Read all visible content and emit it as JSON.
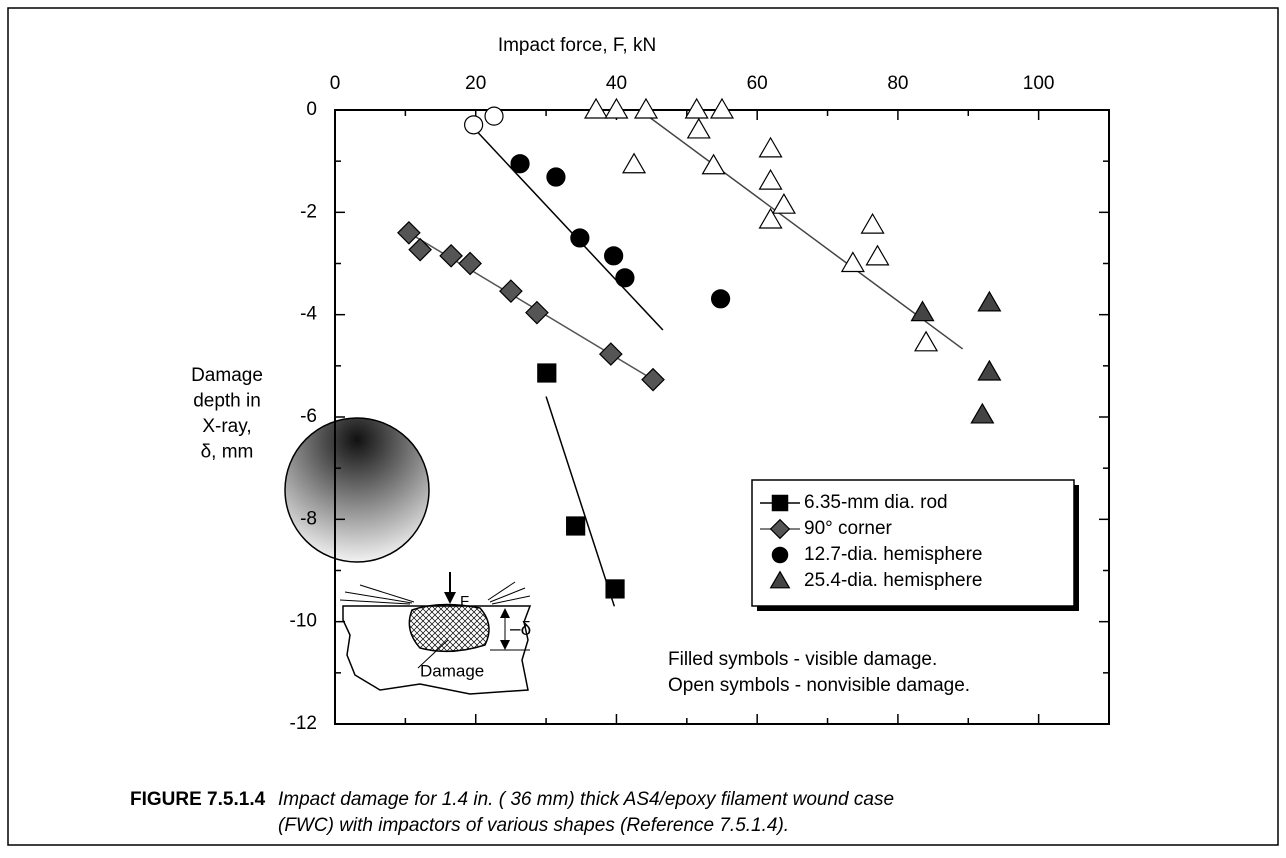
{
  "chart_data": {
    "type": "scatter",
    "xlabel": "Impact force, F, kN",
    "ylabel": [
      "Damage",
      "depth in",
      "X-ray,",
      "δ, mm"
    ],
    "xlim": [
      0,
      110
    ],
    "ylim": [
      -12,
      0
    ],
    "xticks": [
      0,
      20,
      40,
      60,
      80,
      100
    ],
    "xminor": [
      10,
      30,
      50,
      70,
      90
    ],
    "yticks": [
      0,
      -2,
      -4,
      -6,
      -8,
      -10,
      -12
    ],
    "yminor": [
      -1,
      -3,
      -5,
      -7,
      -9,
      -11
    ],
    "series": [
      {
        "name": "6.35-mm dia. rod",
        "marker": "square",
        "filled": true,
        "legend_line": true,
        "color": "#000000",
        "text_color": "#000000",
        "x": [
          30.1,
          34.2,
          39.8
        ],
        "values": [
          -5.14,
          -8.13,
          -9.36
        ]
      },
      {
        "name": "90° corner",
        "marker": "diamond",
        "filled": true,
        "legend_line": true,
        "color": "#555555",
        "text_color": "#555555",
        "x": [
          10.5,
          12.1,
          16.5,
          19.2,
          25.0,
          28.7,
          39.2,
          45.2
        ],
        "values": [
          -2.4,
          -2.73,
          -2.85,
          -3.0,
          -3.54,
          -3.96,
          -4.77,
          -5.27
        ]
      },
      {
        "name": "12.7-dia. hemisphere",
        "marker": "circle",
        "filled": true,
        "legend_line": false,
        "color": "#000000",
        "text_color": "#000000",
        "x": [
          26.3,
          31.4,
          34.8,
          39.6,
          41.2,
          54.8
        ],
        "values": [
          -1.05,
          -1.31,
          -2.5,
          -2.85,
          -3.28,
          -3.69
        ]
      },
      {
        "name": "25.4-dia. hemisphere",
        "marker": "triangle",
        "filled": true,
        "legend_line": false,
        "color": "#444444",
        "text_color": "#444444",
        "x": [
          83.5,
          93.0,
          93.0,
          92.0
        ],
        "values": [
          -3.96,
          -3.77,
          -5.12,
          -5.96
        ]
      },
      {
        "marker": "circle",
        "filled": false,
        "color": "#000000",
        "x": [
          19.7,
          22.6
        ],
        "values": [
          -0.29,
          -0.12
        ]
      },
      {
        "marker": "triangle",
        "filled": false,
        "color": "#000000",
        "x": [
          37.1,
          40.0,
          44.2,
          51.4,
          55.0,
          51.7,
          42.5,
          53.8,
          61.9,
          61.9,
          63.8,
          61.9,
          76.4,
          77.1,
          73.6,
          84.0
        ],
        "values": [
          0,
          0,
          0,
          0,
          0,
          -0.39,
          -1.07,
          -1.09,
          -0.76,
          -1.39,
          -1.86,
          -2.15,
          -2.25,
          -2.87,
          -3.0,
          -4.55
        ]
      }
    ],
    "trend_lines": [
      {
        "color": "#000000",
        "x": [
          30.0,
          39.7
        ],
        "values": [
          -5.6,
          -9.7
        ]
      },
      {
        "color": "#555555",
        "x": [
          10.5,
          45.2
        ],
        "values": [
          -2.4,
          -5.27
        ]
      },
      {
        "color": "#000000",
        "x": [
          19.7,
          46.6
        ],
        "values": [
          -0.35,
          -4.3
        ]
      },
      {
        "color": "#444444",
        "x": [
          43.3,
          89.2
        ],
        "values": [
          0,
          -4.67
        ]
      }
    ],
    "annotations": [
      "Filled symbols - visible damage.",
      "Open symbols - nonvisible damage."
    ]
  },
  "inset": {
    "force_label": "F",
    "depth_label": "–δ",
    "damage_label": "Damage"
  },
  "caption": {
    "label": "FIGURE 7.5.1.4",
    "lines": [
      "Impact damage for 1.4 in. ( 36 mm) thick AS4/epoxy filament wound case",
      "(FWC) with impactors of various shapes (Reference 7.5.1.4)."
    ]
  }
}
